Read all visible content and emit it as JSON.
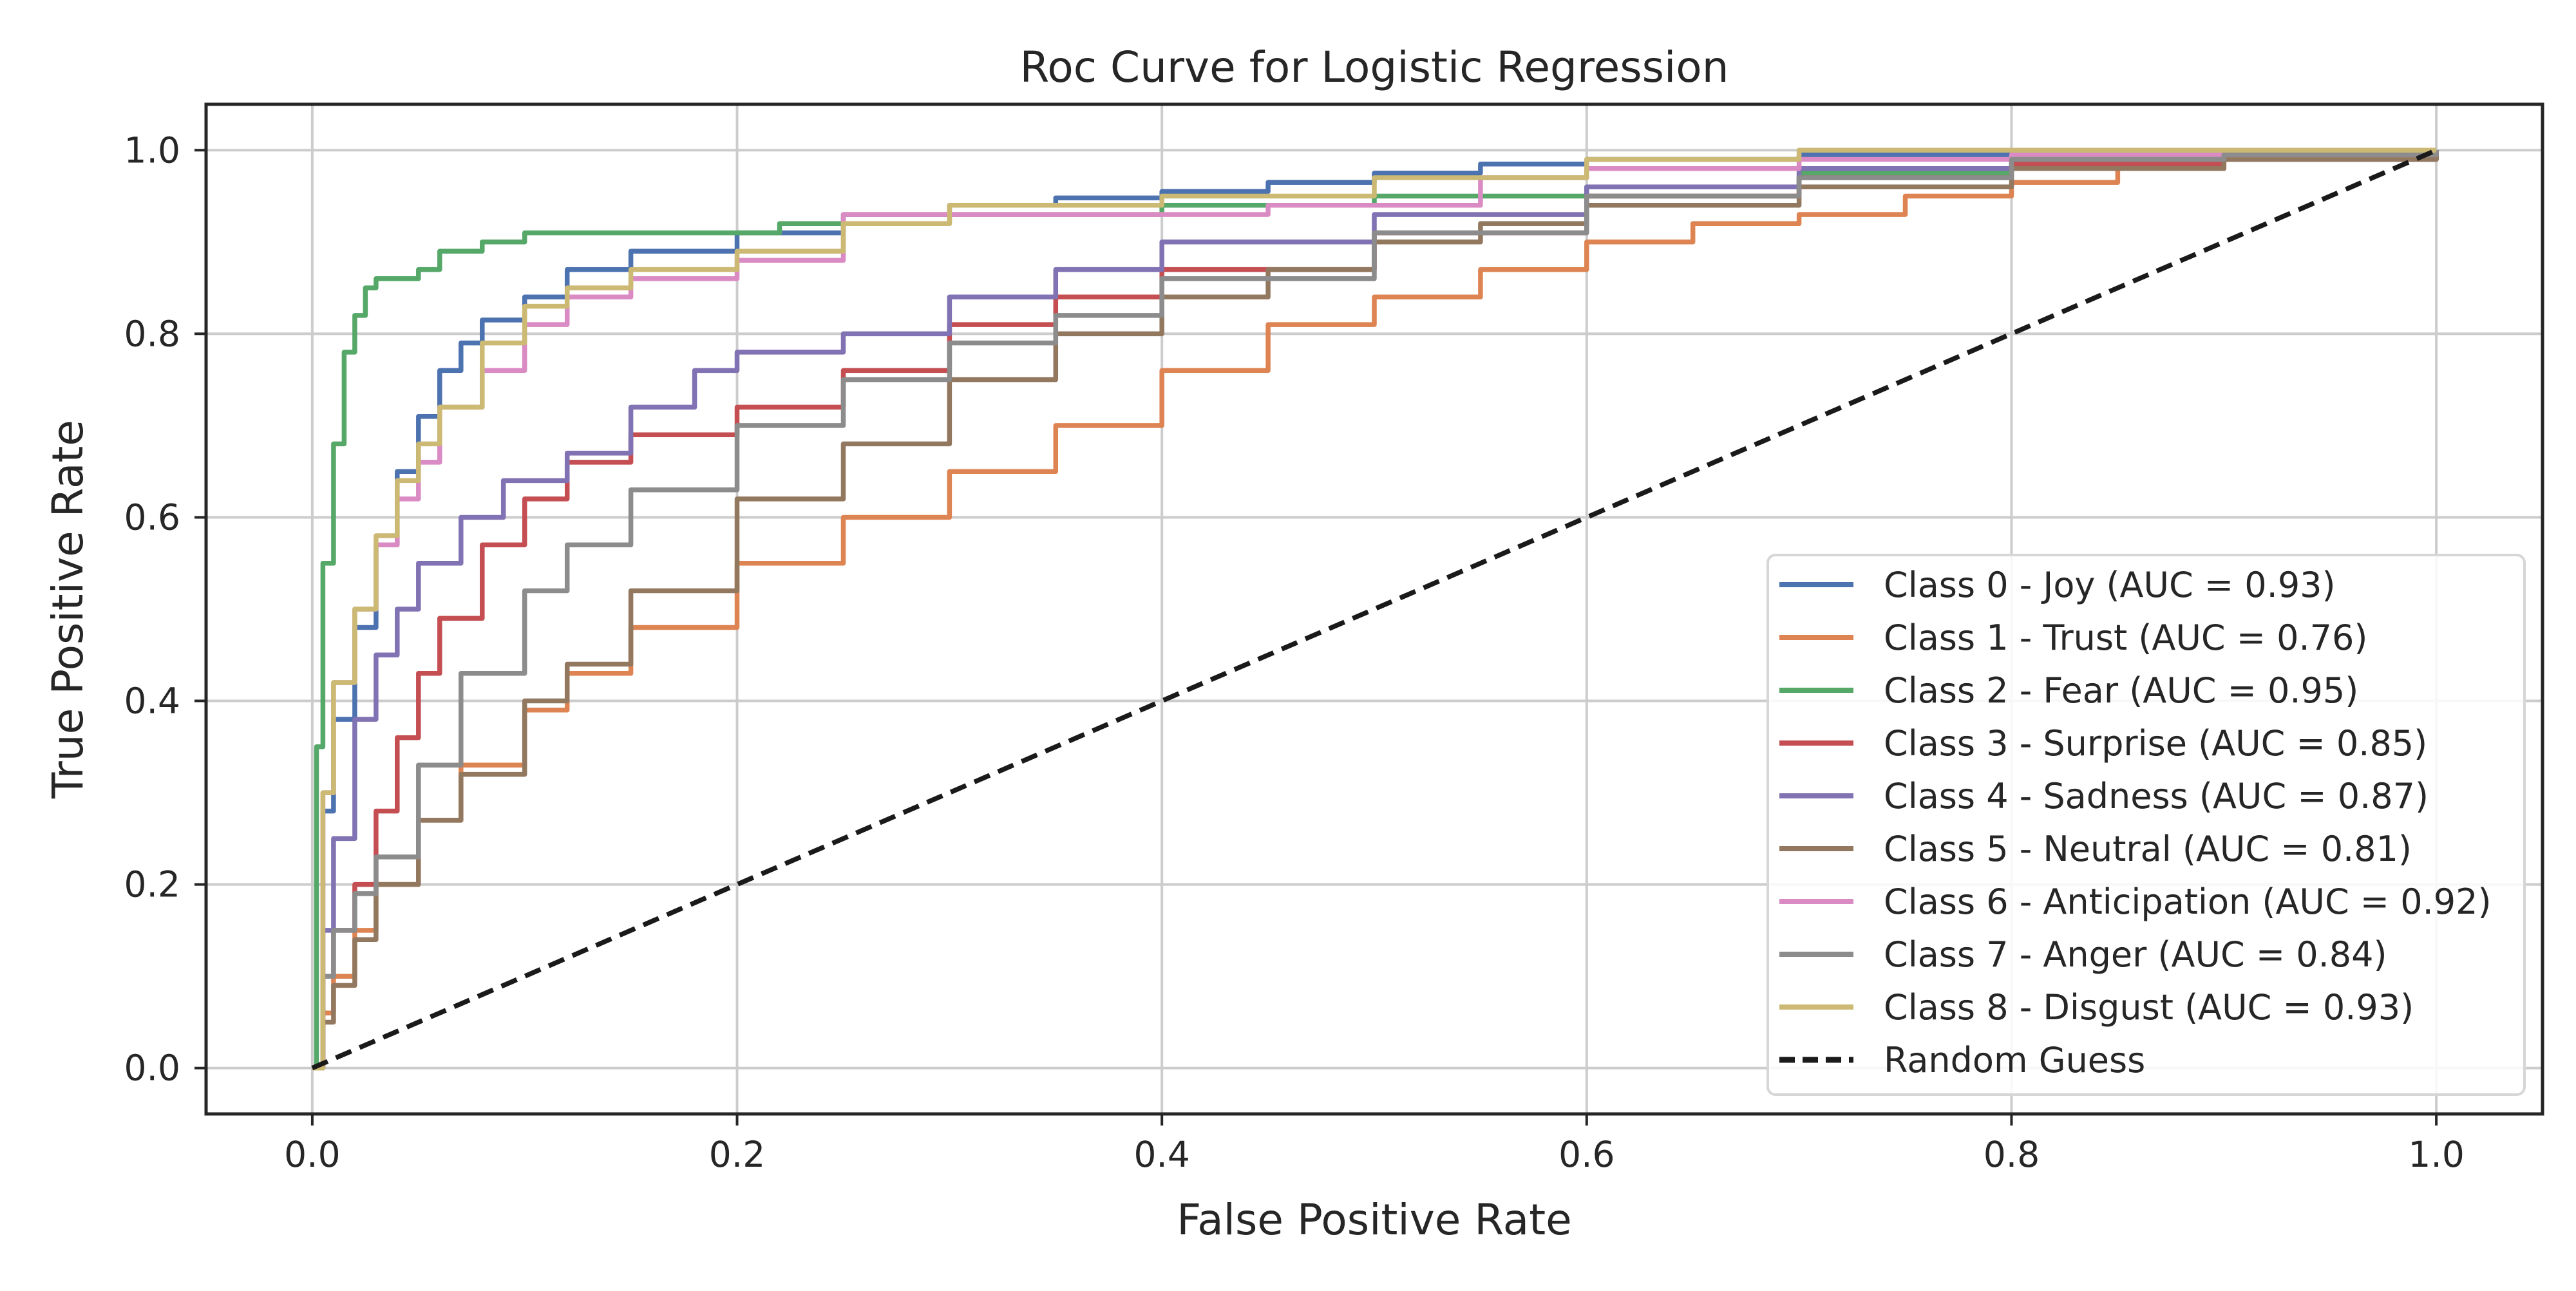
{
  "chart_data": {
    "type": "line",
    "title": "Roc Curve for Logistic Regression",
    "xlabel": "False Positive Rate",
    "ylabel": "True Positive Rate",
    "xlim": [
      -0.05,
      1.05
    ],
    "ylim": [
      -0.05,
      1.05
    ],
    "xticks": [
      0.0,
      0.2,
      0.4,
      0.6,
      0.8,
      1.0
    ],
    "yticks": [
      0.0,
      0.2,
      0.4,
      0.6,
      0.8,
      1.0
    ],
    "tick_labels": [
      "0.0",
      "0.2",
      "0.4",
      "0.6",
      "0.8",
      "1.0"
    ],
    "grid": true,
    "legend_position": "lower-right",
    "series": [
      {
        "name": "Class 0 - Joy (AUC = 0.93)",
        "color": "#4c72b0",
        "points": [
          [
            0,
            0
          ],
          [
            0.005,
            0.28
          ],
          [
            0.01,
            0.38
          ],
          [
            0.02,
            0.48
          ],
          [
            0.03,
            0.57
          ],
          [
            0.04,
            0.65
          ],
          [
            0.05,
            0.71
          ],
          [
            0.06,
            0.76
          ],
          [
            0.07,
            0.79
          ],
          [
            0.08,
            0.815
          ],
          [
            0.1,
            0.84
          ],
          [
            0.12,
            0.87
          ],
          [
            0.15,
            0.89
          ],
          [
            0.2,
            0.91
          ],
          [
            0.25,
            0.93
          ],
          [
            0.3,
            0.94
          ],
          [
            0.35,
            0.948
          ],
          [
            0.4,
            0.955
          ],
          [
            0.45,
            0.965
          ],
          [
            0.5,
            0.975
          ],
          [
            0.55,
            0.985
          ],
          [
            0.6,
            0.99
          ],
          [
            0.7,
            0.995
          ],
          [
            0.8,
            0.998
          ],
          [
            1.0,
            1.0
          ]
        ]
      },
      {
        "name": "Class 1 - Trust (AUC = 0.76)",
        "color": "#dd8452",
        "points": [
          [
            0,
            0
          ],
          [
            0.005,
            0.06
          ],
          [
            0.01,
            0.1
          ],
          [
            0.02,
            0.15
          ],
          [
            0.03,
            0.2
          ],
          [
            0.05,
            0.27
          ],
          [
            0.07,
            0.33
          ],
          [
            0.1,
            0.39
          ],
          [
            0.12,
            0.43
          ],
          [
            0.15,
            0.48
          ],
          [
            0.2,
            0.55
          ],
          [
            0.25,
            0.6
          ],
          [
            0.3,
            0.65
          ],
          [
            0.35,
            0.7
          ],
          [
            0.4,
            0.76
          ],
          [
            0.45,
            0.81
          ],
          [
            0.5,
            0.84
          ],
          [
            0.55,
            0.87
          ],
          [
            0.6,
            0.9
          ],
          [
            0.65,
            0.92
          ],
          [
            0.7,
            0.93
          ],
          [
            0.75,
            0.95
          ],
          [
            0.8,
            0.965
          ],
          [
            0.85,
            0.98
          ],
          [
            0.9,
            0.99
          ],
          [
            1.0,
            1.0
          ]
        ]
      },
      {
        "name": "Class 2 - Fear (AUC = 0.95)",
        "color": "#55a868",
        "points": [
          [
            0,
            0
          ],
          [
            0.002,
            0.35
          ],
          [
            0.005,
            0.55
          ],
          [
            0.01,
            0.68
          ],
          [
            0.015,
            0.78
          ],
          [
            0.02,
            0.82
          ],
          [
            0.025,
            0.85
          ],
          [
            0.03,
            0.86
          ],
          [
            0.05,
            0.87
          ],
          [
            0.06,
            0.89
          ],
          [
            0.08,
            0.9
          ],
          [
            0.1,
            0.91
          ],
          [
            0.2,
            0.91
          ],
          [
            0.22,
            0.92
          ],
          [
            0.3,
            0.93
          ],
          [
            0.4,
            0.94
          ],
          [
            0.5,
            0.95
          ],
          [
            0.6,
            0.96
          ],
          [
            0.7,
            0.975
          ],
          [
            0.8,
            0.99
          ],
          [
            0.9,
            0.995
          ],
          [
            1.0,
            1.0
          ]
        ]
      },
      {
        "name": "Class 3 - Surprise (AUC = 0.85)",
        "color": "#c44e52",
        "points": [
          [
            0,
            0
          ],
          [
            0.005,
            0.1
          ],
          [
            0.01,
            0.15
          ],
          [
            0.02,
            0.2
          ],
          [
            0.03,
            0.28
          ],
          [
            0.04,
            0.36
          ],
          [
            0.05,
            0.43
          ],
          [
            0.06,
            0.49
          ],
          [
            0.08,
            0.57
          ],
          [
            0.1,
            0.62
          ],
          [
            0.12,
            0.66
          ],
          [
            0.15,
            0.69
          ],
          [
            0.2,
            0.72
          ],
          [
            0.25,
            0.76
          ],
          [
            0.3,
            0.81
          ],
          [
            0.35,
            0.84
          ],
          [
            0.4,
            0.87
          ],
          [
            0.5,
            0.91
          ],
          [
            0.6,
            0.95
          ],
          [
            0.7,
            0.97
          ],
          [
            0.8,
            0.985
          ],
          [
            0.9,
            0.995
          ],
          [
            1.0,
            1.0
          ]
        ]
      },
      {
        "name": "Class 4 - Sadness (AUC = 0.87)",
        "color": "#8172b3",
        "points": [
          [
            0,
            0
          ],
          [
            0.005,
            0.15
          ],
          [
            0.01,
            0.25
          ],
          [
            0.02,
            0.38
          ],
          [
            0.03,
            0.45
          ],
          [
            0.04,
            0.5
          ],
          [
            0.05,
            0.55
          ],
          [
            0.07,
            0.6
          ],
          [
            0.09,
            0.64
          ],
          [
            0.12,
            0.67
          ],
          [
            0.15,
            0.72
          ],
          [
            0.18,
            0.76
          ],
          [
            0.2,
            0.78
          ],
          [
            0.25,
            0.8
          ],
          [
            0.3,
            0.84
          ],
          [
            0.35,
            0.87
          ],
          [
            0.4,
            0.9
          ],
          [
            0.5,
            0.93
          ],
          [
            0.6,
            0.96
          ],
          [
            0.7,
            0.98
          ],
          [
            0.8,
            0.99
          ],
          [
            1.0,
            1.0
          ]
        ]
      },
      {
        "name": "Class 5 - Neutral (AUC = 0.81)",
        "color": "#937860",
        "points": [
          [
            0,
            0
          ],
          [
            0.005,
            0.05
          ],
          [
            0.01,
            0.09
          ],
          [
            0.02,
            0.14
          ],
          [
            0.03,
            0.2
          ],
          [
            0.05,
            0.27
          ],
          [
            0.07,
            0.32
          ],
          [
            0.1,
            0.4
          ],
          [
            0.12,
            0.44
          ],
          [
            0.15,
            0.52
          ],
          [
            0.2,
            0.62
          ],
          [
            0.25,
            0.68
          ],
          [
            0.3,
            0.75
          ],
          [
            0.35,
            0.8
          ],
          [
            0.4,
            0.84
          ],
          [
            0.45,
            0.87
          ],
          [
            0.5,
            0.9
          ],
          [
            0.55,
            0.92
          ],
          [
            0.6,
            0.94
          ],
          [
            0.7,
            0.96
          ],
          [
            0.8,
            0.98
          ],
          [
            0.9,
            0.99
          ],
          [
            1.0,
            1.0
          ]
        ]
      },
      {
        "name": "Class 6 - Anticipation (AUC = 0.92)",
        "color": "#da8bc3",
        "points": [
          [
            0,
            0
          ],
          [
            0.005,
            0.3
          ],
          [
            0.01,
            0.42
          ],
          [
            0.02,
            0.5
          ],
          [
            0.03,
            0.57
          ],
          [
            0.04,
            0.62
          ],
          [
            0.05,
            0.66
          ],
          [
            0.06,
            0.72
          ],
          [
            0.08,
            0.76
          ],
          [
            0.1,
            0.81
          ],
          [
            0.12,
            0.84
          ],
          [
            0.15,
            0.86
          ],
          [
            0.2,
            0.88
          ],
          [
            0.25,
            0.93
          ],
          [
            0.35,
            0.93
          ],
          [
            0.45,
            0.94
          ],
          [
            0.55,
            0.97
          ],
          [
            0.6,
            0.98
          ],
          [
            0.7,
            0.99
          ],
          [
            0.8,
            0.995
          ],
          [
            1.0,
            1.0
          ]
        ]
      },
      {
        "name": "Class 7 - Anger (AUC = 0.84)",
        "color": "#8c8c8c",
        "points": [
          [
            0,
            0
          ],
          [
            0.005,
            0.1
          ],
          [
            0.01,
            0.15
          ],
          [
            0.02,
            0.19
          ],
          [
            0.03,
            0.23
          ],
          [
            0.05,
            0.33
          ],
          [
            0.07,
            0.43
          ],
          [
            0.1,
            0.52
          ],
          [
            0.12,
            0.57
          ],
          [
            0.15,
            0.63
          ],
          [
            0.2,
            0.7
          ],
          [
            0.25,
            0.75
          ],
          [
            0.3,
            0.79
          ],
          [
            0.35,
            0.82
          ],
          [
            0.4,
            0.86
          ],
          [
            0.5,
            0.91
          ],
          [
            0.6,
            0.95
          ],
          [
            0.7,
            0.97
          ],
          [
            0.8,
            0.99
          ],
          [
            0.9,
            0.995
          ],
          [
            1.0,
            1.0
          ]
        ]
      },
      {
        "name": "Class 8 - Disgust (AUC = 0.93)",
        "color": "#ccb974",
        "points": [
          [
            0,
            0
          ],
          [
            0.005,
            0.3
          ],
          [
            0.01,
            0.42
          ],
          [
            0.02,
            0.5
          ],
          [
            0.03,
            0.58
          ],
          [
            0.04,
            0.64
          ],
          [
            0.05,
            0.68
          ],
          [
            0.06,
            0.72
          ],
          [
            0.08,
            0.79
          ],
          [
            0.1,
            0.83
          ],
          [
            0.12,
            0.85
          ],
          [
            0.15,
            0.87
          ],
          [
            0.2,
            0.89
          ],
          [
            0.25,
            0.92
          ],
          [
            0.3,
            0.94
          ],
          [
            0.4,
            0.95
          ],
          [
            0.5,
            0.97
          ],
          [
            0.6,
            0.99
          ],
          [
            0.7,
            1.0
          ],
          [
            1.0,
            1.0
          ]
        ]
      },
      {
        "name": "Random Guess",
        "color": "#1a1a1a",
        "dashed": true,
        "points": [
          [
            0,
            0
          ],
          [
            1,
            1
          ]
        ]
      }
    ]
  }
}
